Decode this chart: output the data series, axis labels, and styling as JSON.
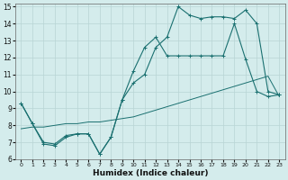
{
  "xlabel": "Humidex (Indice chaleur)",
  "bg_color": "#d4ecec",
  "grid_color": "#b8d4d4",
  "line_color": "#1a7070",
  "xlim": [
    -0.5,
    23.5
  ],
  "ylim": [
    6,
    15.2
  ],
  "xticks": [
    0,
    1,
    2,
    3,
    4,
    5,
    6,
    7,
    8,
    9,
    10,
    11,
    12,
    13,
    14,
    15,
    16,
    17,
    18,
    19,
    20,
    21,
    22,
    23
  ],
  "yticks": [
    6,
    7,
    8,
    9,
    10,
    11,
    12,
    13,
    14,
    15
  ],
  "line1_x": [
    0,
    1,
    2,
    3,
    4,
    5,
    6,
    7,
    8,
    9,
    10,
    11,
    12,
    13,
    14,
    15,
    16,
    17,
    18,
    19,
    20,
    21,
    22,
    23
  ],
  "line1_y": [
    9.3,
    8.1,
    6.9,
    6.8,
    7.3,
    7.5,
    7.5,
    6.3,
    7.3,
    9.5,
    11.2,
    12.6,
    13.2,
    12.1,
    12.1,
    12.1,
    12.1,
    12.1,
    12.1,
    14.0,
    11.9,
    10.0,
    9.7,
    9.8
  ],
  "line2_x": [
    0,
    1,
    2,
    3,
    4,
    5,
    6,
    7,
    8,
    9,
    10,
    11,
    12,
    13,
    14,
    15,
    16,
    17,
    18,
    19,
    20,
    21,
    22,
    23
  ],
  "line2_y": [
    7.8,
    7.9,
    7.9,
    8.0,
    8.1,
    8.1,
    8.2,
    8.2,
    8.3,
    8.4,
    8.5,
    8.7,
    8.9,
    9.1,
    9.3,
    9.5,
    9.7,
    9.9,
    10.1,
    10.3,
    10.5,
    10.7,
    10.9,
    9.7
  ],
  "line3_x": [
    0,
    1,
    2,
    3,
    4,
    5,
    6,
    7,
    8,
    9,
    10,
    11,
    12,
    13,
    14,
    15,
    16,
    17,
    18,
    19,
    20,
    21,
    22,
    23
  ],
  "line3_y": [
    9.3,
    8.1,
    7.0,
    6.9,
    7.4,
    7.5,
    7.5,
    6.3,
    7.3,
    9.5,
    10.5,
    11.0,
    12.6,
    13.2,
    15.0,
    14.5,
    14.3,
    14.4,
    14.4,
    14.3,
    14.8,
    14.0,
    10.0,
    9.8
  ]
}
